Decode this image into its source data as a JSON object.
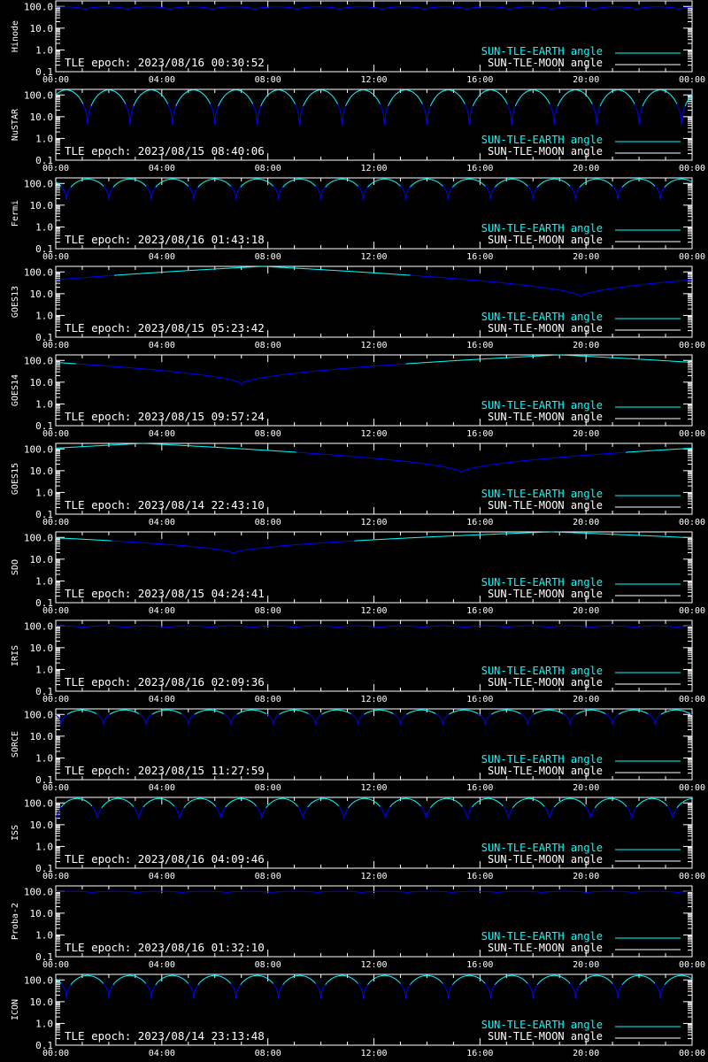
{
  "chart_data": {
    "type": "line",
    "y_scale": "log",
    "ylim": [
      0.1,
      180
    ],
    "y_tick_labels": [
      "0.1",
      "1.0",
      "10.0",
      "100.0"
    ],
    "x_tick_labels": [
      "00:00",
      "04:00",
      "08:00",
      "12:00",
      "16:00",
      "20:00",
      "00:00"
    ],
    "xlim": [
      "00:00",
      "24:00"
    ],
    "legend": {
      "position": "bottom-right",
      "entries": [
        {
          "label": "SUN-TLE-EARTH angle",
          "color": "#00ffff"
        },
        {
          "label": "SUN-TLE-MOON angle",
          "color": "#ffffff"
        }
      ]
    },
    "colors": {
      "background": "#000000",
      "axes": "#ffffff",
      "earth_angle": "#00ffff",
      "eclipse_segment": "#0000ff"
    },
    "panels": [
      {
        "name": "Hinode",
        "tle_epoch": "TLE epoch: 2023/08/16 00:30:52",
        "model": {
          "kind": "leo",
          "period_h": 1.6,
          "max": 95,
          "min": 70,
          "phase_h": 0.3
        }
      },
      {
        "name": "NuSTAR",
        "tle_epoch": "TLE epoch: 2023/08/15 08:40:06",
        "model": {
          "kind": "leo",
          "period_h": 1.6,
          "max": 170,
          "min": 4,
          "phase_h": 0.4
        }
      },
      {
        "name": "Fermi",
        "tle_epoch": "TLE epoch: 2023/08/16 01:43:18",
        "model": {
          "kind": "leo",
          "period_h": 1.6,
          "max": 160,
          "min": 18,
          "phase_h": 1.2
        }
      },
      {
        "name": "GOES13",
        "tle_epoch": "TLE epoch: 2023/08/15 05:23:42",
        "model": {
          "kind": "geo",
          "min_time_h": 19.8,
          "min": 7,
          "max": 180
        }
      },
      {
        "name": "GOES14",
        "tle_epoch": "TLE epoch: 2023/08/15 09:57:24",
        "model": {
          "kind": "geo",
          "min_time_h": 7.0,
          "min": 8,
          "max": 180
        }
      },
      {
        "name": "GOES15",
        "tle_epoch": "TLE epoch: 2023/08/14 22:43:10",
        "model": {
          "kind": "geo",
          "min_time_h": 15.3,
          "min": 8,
          "max": 180
        }
      },
      {
        "name": "SDO",
        "tle_epoch": "TLE epoch: 2023/08/15 04:24:41",
        "model": {
          "kind": "geo",
          "min_time_h": 6.7,
          "min": 18,
          "max": 180
        }
      },
      {
        "name": "IRIS",
        "tle_epoch": "TLE epoch: 2023/08/16 02:09:36",
        "model": {
          "kind": "leo",
          "period_h": 1.6,
          "max": 100,
          "min": 82,
          "phase_h": 0.2
        }
      },
      {
        "name": "SORCE",
        "tle_epoch": "TLE epoch: 2023/08/15 11:27:59",
        "model": {
          "kind": "leo",
          "period_h": 1.6,
          "max": 160,
          "min": 35,
          "phase_h": 1.0
        }
      },
      {
        "name": "ISS",
        "tle_epoch": "TLE epoch: 2023/08/16 04:09:46",
        "model": {
          "kind": "leo",
          "period_h": 1.55,
          "max": 160,
          "min": 14,
          "phase_h": 0.8
        }
      },
      {
        "name": "Proba-2",
        "tle_epoch": "TLE epoch: 2023/08/16 01:32:10",
        "model": {
          "kind": "leo",
          "period_h": 1.7,
          "max": 100,
          "min": 88,
          "phase_h": 0.5
        }
      },
      {
        "name": "ICON",
        "tle_epoch": "TLE epoch: 2023/08/14 23:13:48",
        "model": {
          "kind": "leo",
          "period_h": 1.6,
          "max": 160,
          "min": 14,
          "phase_h": 1.2
        }
      }
    ]
  }
}
